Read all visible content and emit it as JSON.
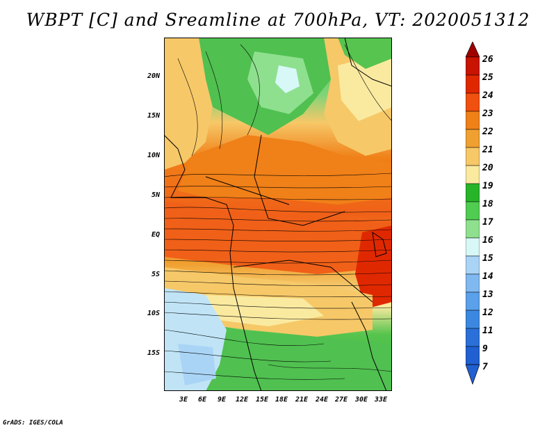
{
  "title": "WBPT [C] and Sreamline at 700hPa, VT: 2020051312",
  "footer": "GrADS: IGES/COLA",
  "map": {
    "lat_labels": [
      "20N",
      "15N",
      "10N",
      "5N",
      "EQ",
      "5S",
      "10S",
      "15S"
    ],
    "lon_labels": [
      "3E",
      "6E",
      "9E",
      "12E",
      "15E",
      "18E",
      "21E",
      "24E",
      "27E",
      "30E",
      "33E"
    ]
  },
  "colorbar": {
    "labels": [
      "26",
      "25",
      "24",
      "23",
      "22",
      "21",
      "20",
      "19",
      "18",
      "17",
      "16",
      "15",
      "14",
      "13",
      "12",
      "11",
      "9",
      "7"
    ],
    "colors": [
      "#a00000",
      "#c81400",
      "#e02800",
      "#f05010",
      "#f08018",
      "#f0a030",
      "#f6c868",
      "#faeaa0",
      "#28b428",
      "#50cc50",
      "#8ee08e",
      "#d8f8f8",
      "#aad4f6",
      "#80b8f0",
      "#5aa0ea",
      "#3c88e0",
      "#2a70d8",
      "#2060d0"
    ]
  }
}
